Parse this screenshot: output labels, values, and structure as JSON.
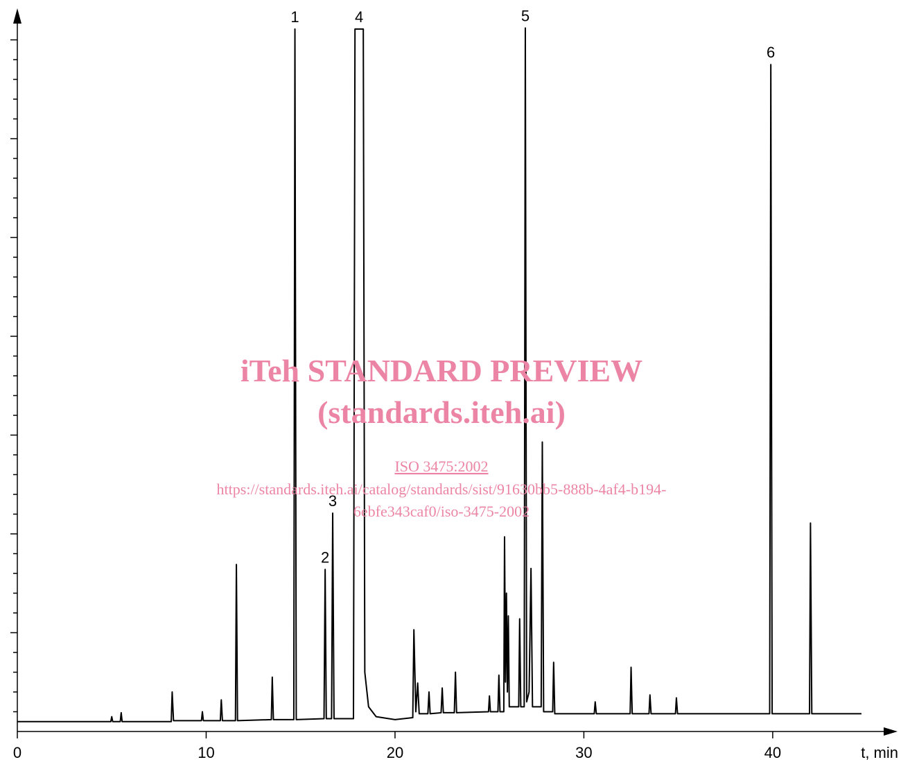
{
  "chart_data": {
    "type": "line",
    "xlabel": "t, min",
    "xlim": [
      0,
      46.5
    ],
    "xticks": [
      0,
      10,
      20,
      30,
      40
    ],
    "ylim": [
      0,
      72
    ],
    "yticks": [
      2,
      4,
      6,
      8,
      10,
      12,
      14,
      16,
      18,
      20,
      22,
      24,
      26,
      28,
      30,
      32,
      34,
      36,
      38,
      40,
      42,
      44,
      46,
      48,
      50,
      52,
      54,
      56,
      58,
      60,
      62,
      64,
      66,
      68,
      70
    ],
    "color": "#000000",
    "x": [
      0,
      4.95,
      5.0,
      5.05,
      5.45,
      5.5,
      5.55,
      8.15,
      8.2,
      8.27,
      9.75,
      9.8,
      9.85,
      10.75,
      10.8,
      10.86,
      11.55,
      11.6,
      11.66,
      13.45,
      13.5,
      13.56,
      14.64,
      14.7,
      14.77,
      16.24,
      16.3,
      16.36,
      16.64,
      16.7,
      16.77,
      17.8,
      17.88,
      18.32,
      18.4,
      18.6,
      19.0,
      20.0,
      20.94,
      21.0,
      21.1,
      21.2,
      21.28,
      21.74,
      21.8,
      21.86,
      22.44,
      22.5,
      22.56,
      23.14,
      23.2,
      23.26,
      24.95,
      25.0,
      25.05,
      25.45,
      25.5,
      25.56,
      25.76,
      25.8,
      25.85,
      25.9,
      25.95,
      26.0,
      26.05,
      26.55,
      26.6,
      26.66,
      26.84,
      26.9,
      26.97,
      27.1,
      27.2,
      27.28,
      27.74,
      27.8,
      27.87,
      28.35,
      28.4,
      28.46,
      30.55,
      30.6,
      30.66,
      32.45,
      32.5,
      32.56,
      33.45,
      33.5,
      33.56,
      34.85,
      34.9,
      34.96,
      39.84,
      39.9,
      39.97,
      41.95,
      42.0,
      42.07,
      44.7
    ],
    "values": [
      1.0,
      1.0,
      1.5,
      1.0,
      1.0,
      1.9,
      1.0,
      1.0,
      4.0,
      1.1,
      1.1,
      2.0,
      1.1,
      1.1,
      3.2,
      1.1,
      1.1,
      16.9,
      1.1,
      1.2,
      5.5,
      1.2,
      1.2,
      71.1,
      1.2,
      1.3,
      16.4,
      1.3,
      1.3,
      22.1,
      1.3,
      1.3,
      71.1,
      71.1,
      6.0,
      2.5,
      1.5,
      1.2,
      1.4,
      10.3,
      2.0,
      4.9,
      1.8,
      1.8,
      4.0,
      1.8,
      1.9,
      4.4,
      1.9,
      1.9,
      6.0,
      1.9,
      2.0,
      3.6,
      2.0,
      2.0,
      5.7,
      2.0,
      2.0,
      19.7,
      5.0,
      14.0,
      4.0,
      11.7,
      2.5,
      2.5,
      11.4,
      2.5,
      2.5,
      71.2,
      3.0,
      4.0,
      16.5,
      2.5,
      2.5,
      29.3,
      2.0,
      2.0,
      7.0,
      1.8,
      1.8,
      3.0,
      1.8,
      1.8,
      6.5,
      1.8,
      1.8,
      3.7,
      1.8,
      1.8,
      3.4,
      1.8,
      1.8,
      67.5,
      1.8,
      1.8,
      21.1,
      1.8,
      1.8
    ],
    "annotations": [
      {
        "label": "1",
        "x": 14.7
      },
      {
        "label": "2",
        "x": 16.3
      },
      {
        "label": "3",
        "x": 16.7
      },
      {
        "label": "4",
        "x": 18.1
      },
      {
        "label": "5",
        "x": 26.9
      },
      {
        "label": "6",
        "x": 39.9
      }
    ]
  },
  "watermark": {
    "title": "iTeh STANDARD PREVIEW",
    "subtitle": "(standards.iteh.ai)",
    "link": "ISO 3475:2002",
    "url_line1": "https://standards.iteh.ai/catalog/standards/sist/91630bb5-888b-4af4-b194-",
    "url_line2": "6ebfe343caf0/iso-3475-2002"
  }
}
